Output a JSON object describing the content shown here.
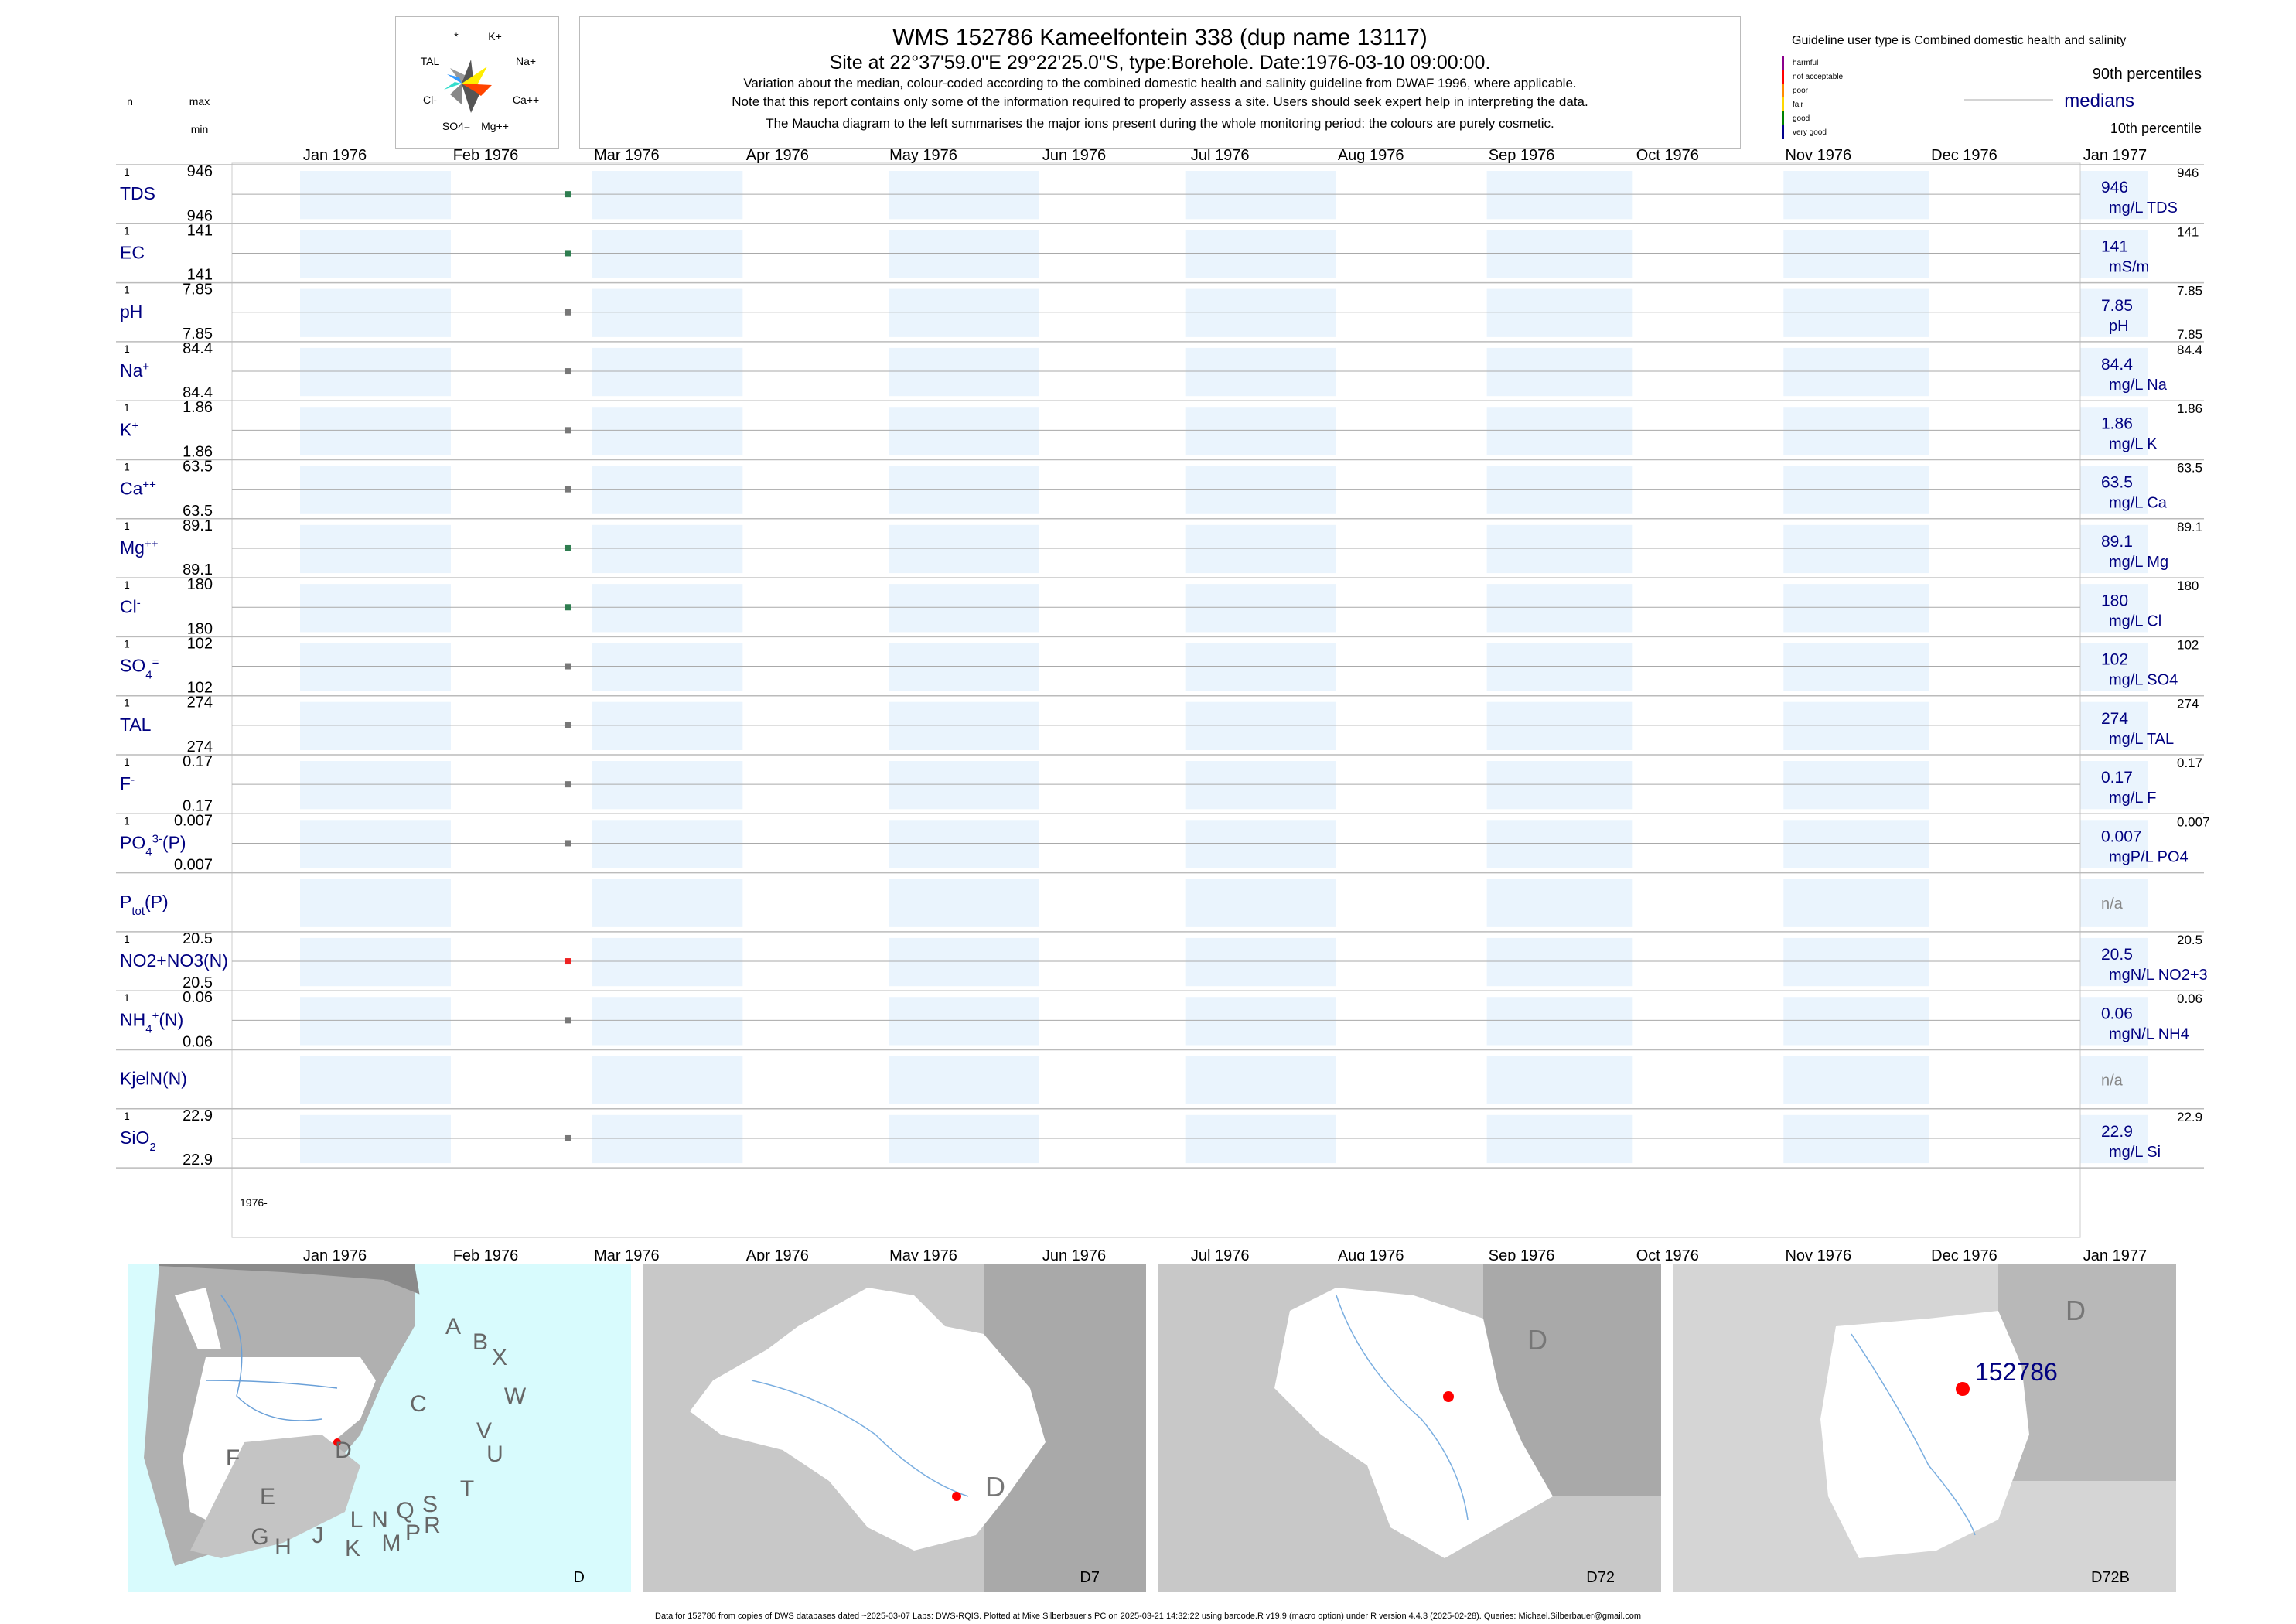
{
  "title": {
    "line1": "WMS 152786  Kameelfontein 338 (dup name 13117)",
    "line2": "Site at 22°37'59.0\"E 29°22'25.0\"S, type:Borehole. Date:1976-03-10 09:00:00.",
    "line3": "Variation about the median,  colour-coded according to the combined domestic health and salinity guideline from DWAF 1996, where applicable.",
    "line4": "Note that this report contains only some of the information required to properly assess a site. Users should seek expert help in interpreting the data.",
    "line5": "The Maucha diagram to the left summarises the major ions present during the whole monitoring period: the colours are purely cosmetic."
  },
  "maucha": {
    "labels": [
      "*",
      "K+",
      "Na+",
      "Ca++",
      "Mg++",
      "SO4=",
      "Cl-",
      "TAL"
    ]
  },
  "left_header": {
    "n": "n",
    "max": "max",
    "min": "min"
  },
  "legend": {
    "guideline_title": "Guideline user type is Combined domestic health and salinity",
    "classes": [
      {
        "label": "harmful",
        "color": "#8b008b"
      },
      {
        "label": "not acceptable",
        "color": "#ff0000"
      },
      {
        "label": "poor",
        "color": "#ff8c00"
      },
      {
        "label": "fair",
        "color": "#ffd700"
      },
      {
        "label": "good",
        "color": "#008000"
      },
      {
        "label": "very good",
        "color": "#00008b"
      }
    ],
    "p90": "90th percentiles",
    "medians": "medians",
    "p10": "10th percentile"
  },
  "months": [
    "Jan 1976",
    "Feb 1976",
    "Mar 1976",
    "Apr 1976",
    "May 1976",
    "Jun 1976",
    "Jul 1976",
    "Aug 1976",
    "Sep 1976",
    "Oct 1976",
    "Nov 1976",
    "Dec 1976",
    "Jan 1977"
  ],
  "year_label": "1976-",
  "chart_data": {
    "type": "scatter",
    "x_axis": {
      "start": "1976-01-01",
      "end": "1977-01-15",
      "tick_labels": [
        "Jan 1976",
        "Feb 1976",
        "Mar 1976",
        "Apr 1976",
        "May 1976",
        "Jun 1976",
        "Jul 1976",
        "Aug 1976",
        "Sep 1976",
        "Oct 1976",
        "Nov 1976",
        "Dec 1976",
        "Jan 1977"
      ]
    },
    "sample_date": "1976-03-10",
    "series": [
      {
        "label": "TDS",
        "label_sub": "",
        "label_sup": "",
        "n": "1",
        "max": "946",
        "min": "946",
        "value": 946,
        "median": "946",
        "unit": "mg/L TDS",
        "p90": "946",
        "p10": "",
        "color": "#2e7d4f"
      },
      {
        "label": "EC",
        "label_sub": "",
        "label_sup": "",
        "n": "1",
        "max": "141",
        "min": "141",
        "value": 141,
        "median": "141",
        "unit": "mS/m",
        "p90": "141",
        "p10": "",
        "color": "#2e7d4f"
      },
      {
        "label": "pH",
        "label_sub": "",
        "label_sup": "",
        "n": "1",
        "max": "7.85",
        "min": "7.85",
        "value": 7.85,
        "median": "7.85",
        "unit": "pH",
        "p90": "7.85",
        "p10": "7.85",
        "color": "#777777"
      },
      {
        "label": "Na",
        "label_sub": "",
        "label_sup": "+",
        "n": "1",
        "max": "84.4",
        "min": "84.4",
        "value": 84.4,
        "median": "84.4",
        "unit": "mg/L Na",
        "p90": "84.4",
        "p10": "",
        "color": "#777777"
      },
      {
        "label": "K",
        "label_sub": "",
        "label_sup": "+",
        "n": "1",
        "max": "1.86",
        "min": "1.86",
        "value": 1.86,
        "median": "1.86",
        "unit": "mg/L K",
        "p90": "1.86",
        "p10": "",
        "color": "#777777"
      },
      {
        "label": "Ca",
        "label_sub": "",
        "label_sup": "++",
        "n": "1",
        "max": "63.5",
        "min": "63.5",
        "value": 63.5,
        "median": "63.5",
        "unit": "mg/L Ca",
        "p90": "63.5",
        "p10": "",
        "color": "#777777"
      },
      {
        "label": "Mg",
        "label_sub": "",
        "label_sup": "++",
        "n": "1",
        "max": "89.1",
        "min": "89.1",
        "value": 89.1,
        "median": "89.1",
        "unit": "mg/L Mg",
        "p90": "89.1",
        "p10": "",
        "color": "#2e7d4f"
      },
      {
        "label": "Cl",
        "label_sub": "",
        "label_sup": "-",
        "n": "1",
        "max": "180",
        "min": "180",
        "value": 180,
        "median": "180",
        "unit": "mg/L Cl",
        "p90": "180",
        "p10": "",
        "color": "#2e7d4f"
      },
      {
        "label": "SO",
        "label_sub": "4",
        "label_sup": "=",
        "n": "1",
        "max": "102",
        "min": "102",
        "value": 102,
        "median": "102",
        "unit": "mg/L SO4",
        "p90": "102",
        "p10": "",
        "color": "#777777"
      },
      {
        "label": "TAL",
        "label_sub": "",
        "label_sup": "",
        "n": "1",
        "max": "274",
        "min": "274",
        "value": 274,
        "median": "274",
        "unit": "mg/L TAL",
        "p90": "274",
        "p10": "",
        "color": "#777777"
      },
      {
        "label": "F",
        "label_sub": "",
        "label_sup": "-",
        "n": "1",
        "max": "0.17",
        "min": "0.17",
        "value": 0.17,
        "median": "0.17",
        "unit": "mg/L F",
        "p90": "0.17",
        "p10": "",
        "color": "#777777"
      },
      {
        "label": "PO",
        "label_sub": "4",
        "label_sup": "3-",
        "label_tail": "(P)",
        "n": "1",
        "max": "0.007",
        "min": "0.007",
        "value": 0.007,
        "median": "0.007",
        "unit": "mgP/L PO4",
        "p90": "0.007",
        "p10": "",
        "color": "#777777"
      },
      {
        "label": "P",
        "label_sub": "tot",
        "label_sup": "",
        "label_tail": "(P)",
        "n": "",
        "max": "",
        "min": "",
        "value": null,
        "median": "n/a",
        "unit": "",
        "p90": "",
        "p10": "",
        "color": "#777777"
      },
      {
        "label": "NO2+NO3(N)",
        "label_sub": "",
        "label_sup": "",
        "n": "1",
        "max": "20.5",
        "min": "20.5",
        "value": 20.5,
        "median": "20.5",
        "unit": "mgN/L NO2+3",
        "p90": "20.5",
        "p10": "",
        "color": "#ee2222"
      },
      {
        "label": "NH",
        "label_sub": "4",
        "label_sup": "+",
        "label_tail": "(N)",
        "n": "1",
        "max": "0.06",
        "min": "0.06",
        "value": 0.06,
        "median": "0.06",
        "unit": "mgN/L NH4",
        "p90": "0.06",
        "p10": "",
        "color": "#777777"
      },
      {
        "label": "KjelN(N)",
        "label_sub": "",
        "label_sup": "",
        "n": "",
        "max": "",
        "min": "",
        "value": null,
        "median": "n/a",
        "unit": "",
        "p90": "",
        "p10": "",
        "color": "#777777"
      },
      {
        "label": "SiO",
        "label_sub": "2",
        "label_sup": "",
        "n": "1",
        "max": "22.9",
        "min": "22.9",
        "value": 22.9,
        "median": "22.9",
        "unit": "mg/L Si",
        "p90": "22.9",
        "p10": "",
        "color": "#777777"
      }
    ]
  },
  "maps": [
    {
      "caption": "D",
      "letters": [
        "A",
        "B",
        "X",
        "C",
        "W",
        "D",
        "V",
        "U",
        "F",
        "E",
        "T",
        "S",
        "R",
        "Q",
        "L",
        "N",
        "M",
        "P",
        "G",
        "H",
        "J",
        "K"
      ]
    },
    {
      "caption": "D7",
      "letters": [
        "D"
      ]
    },
    {
      "caption": "D72",
      "letters": [
        "D"
      ]
    },
    {
      "caption": "D72B",
      "letters": [
        "D"
      ],
      "site_label": "152786"
    }
  ],
  "footer": "Data for 152786 from copies of DWS databases dated ~2025-03-07 Labs: DWS-RQIS. Plotted at Mike Silberbauer's PC on 2025-03-21 14:32:22 using barcode.R v19.9 (macro option) under R version 4.4.3 (2025-02-28). Queries: Michael.Silberbauer@gmail.com"
}
